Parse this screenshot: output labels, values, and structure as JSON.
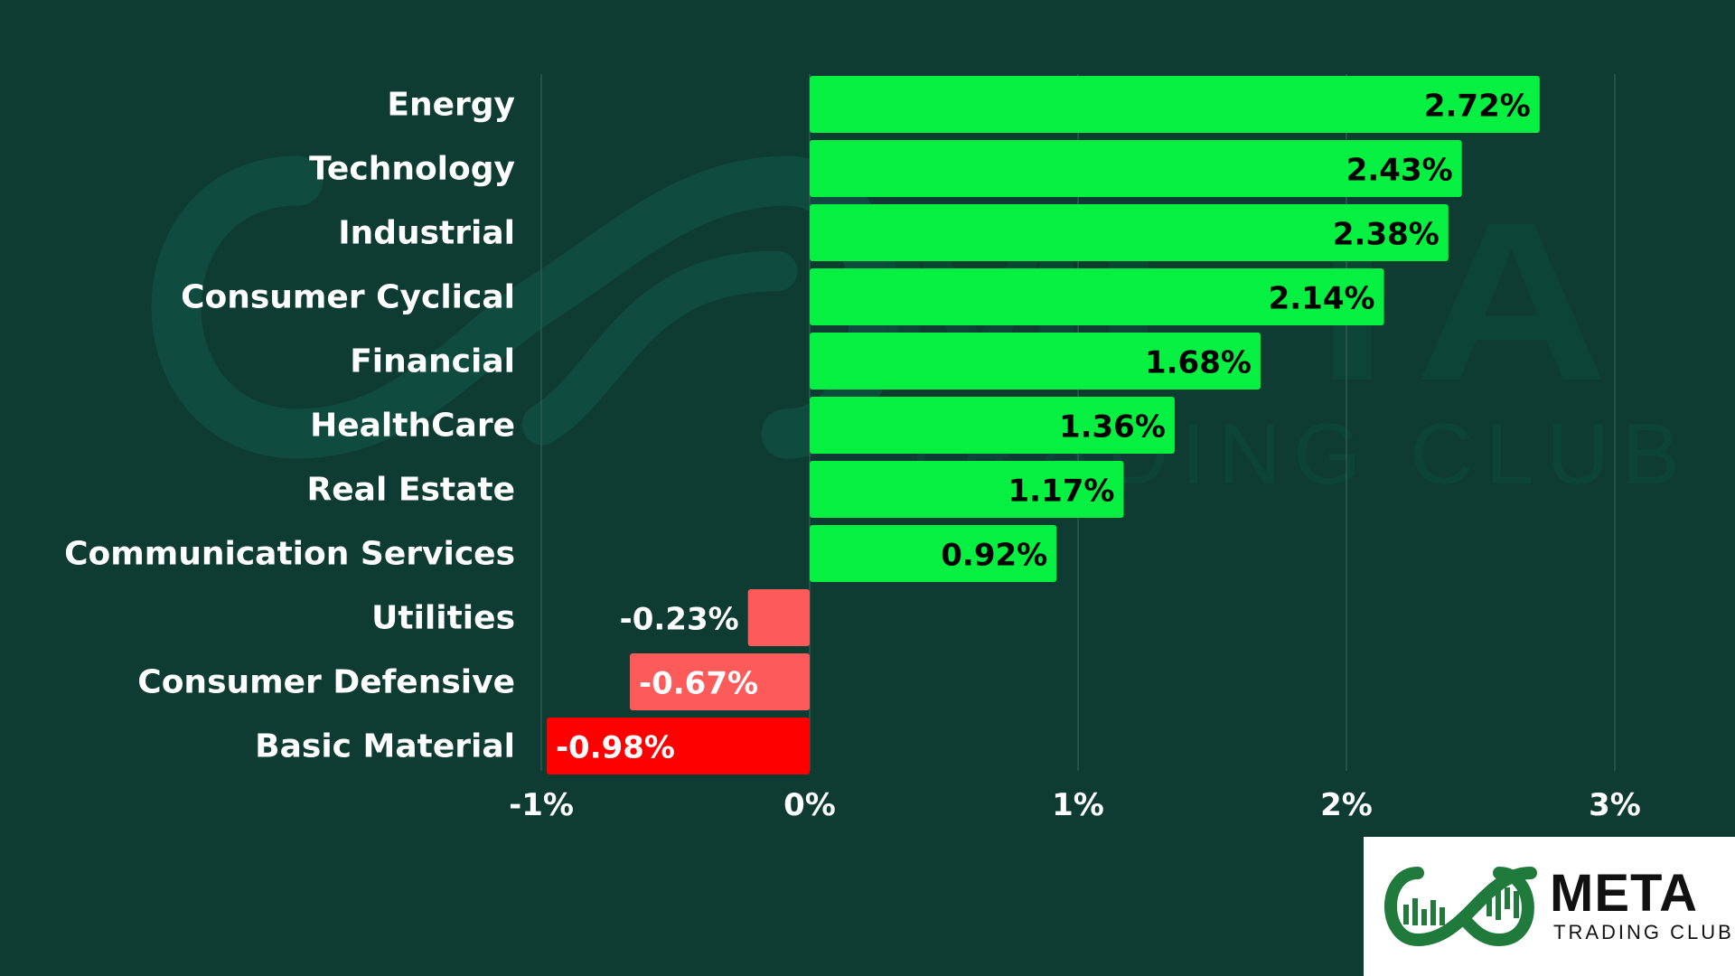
{
  "chart_data": {
    "type": "bar",
    "orientation": "horizontal",
    "title": "",
    "xlabel": "",
    "ylabel": "",
    "categories": [
      "Energy",
      "Technology",
      "Industrial",
      "Consumer Cyclical",
      "Financial",
      "HealthCare",
      "Real Estate",
      "Communication Services",
      "Utilities",
      "Consumer Defensive",
      "Basic Material"
    ],
    "values": [
      2.72,
      2.43,
      2.38,
      2.14,
      1.68,
      1.36,
      1.17,
      0.92,
      -0.23,
      -0.67,
      -0.98
    ],
    "value_labels": [
      "2.72%",
      "2.43%",
      "2.38%",
      "2.14%",
      "1.68%",
      "1.36%",
      "1.17%",
      "0.92%",
      "-0.23%",
      "-0.67%",
      "-0.98%"
    ],
    "bar_colors": [
      "#05f040",
      "#05f040",
      "#05f040",
      "#05f040",
      "#05f040",
      "#05f040",
      "#05f040",
      "#05f040",
      "#fd5a5a",
      "#fd5a5a",
      "#ff0000"
    ],
    "xlim": [
      -1,
      3
    ],
    "xticks": [
      -1,
      0,
      1,
      2,
      3
    ],
    "xtick_labels": [
      "-1%",
      "0%",
      "1%",
      "2%",
      "3%"
    ],
    "grid": "vertical",
    "legend": "none"
  },
  "colors": {
    "background": "#0e3b32",
    "positive": "#05f040",
    "negative_light": "#fd5a5a",
    "negative_strong": "#ff0000",
    "gridline": "#2c5a50",
    "logo_green": "#1f7a3c"
  },
  "watermark": {
    "title": "META",
    "subtitle": "TRADING CLUB"
  },
  "logo": {
    "title": "META",
    "subtitle": "TRADING CLUB"
  }
}
